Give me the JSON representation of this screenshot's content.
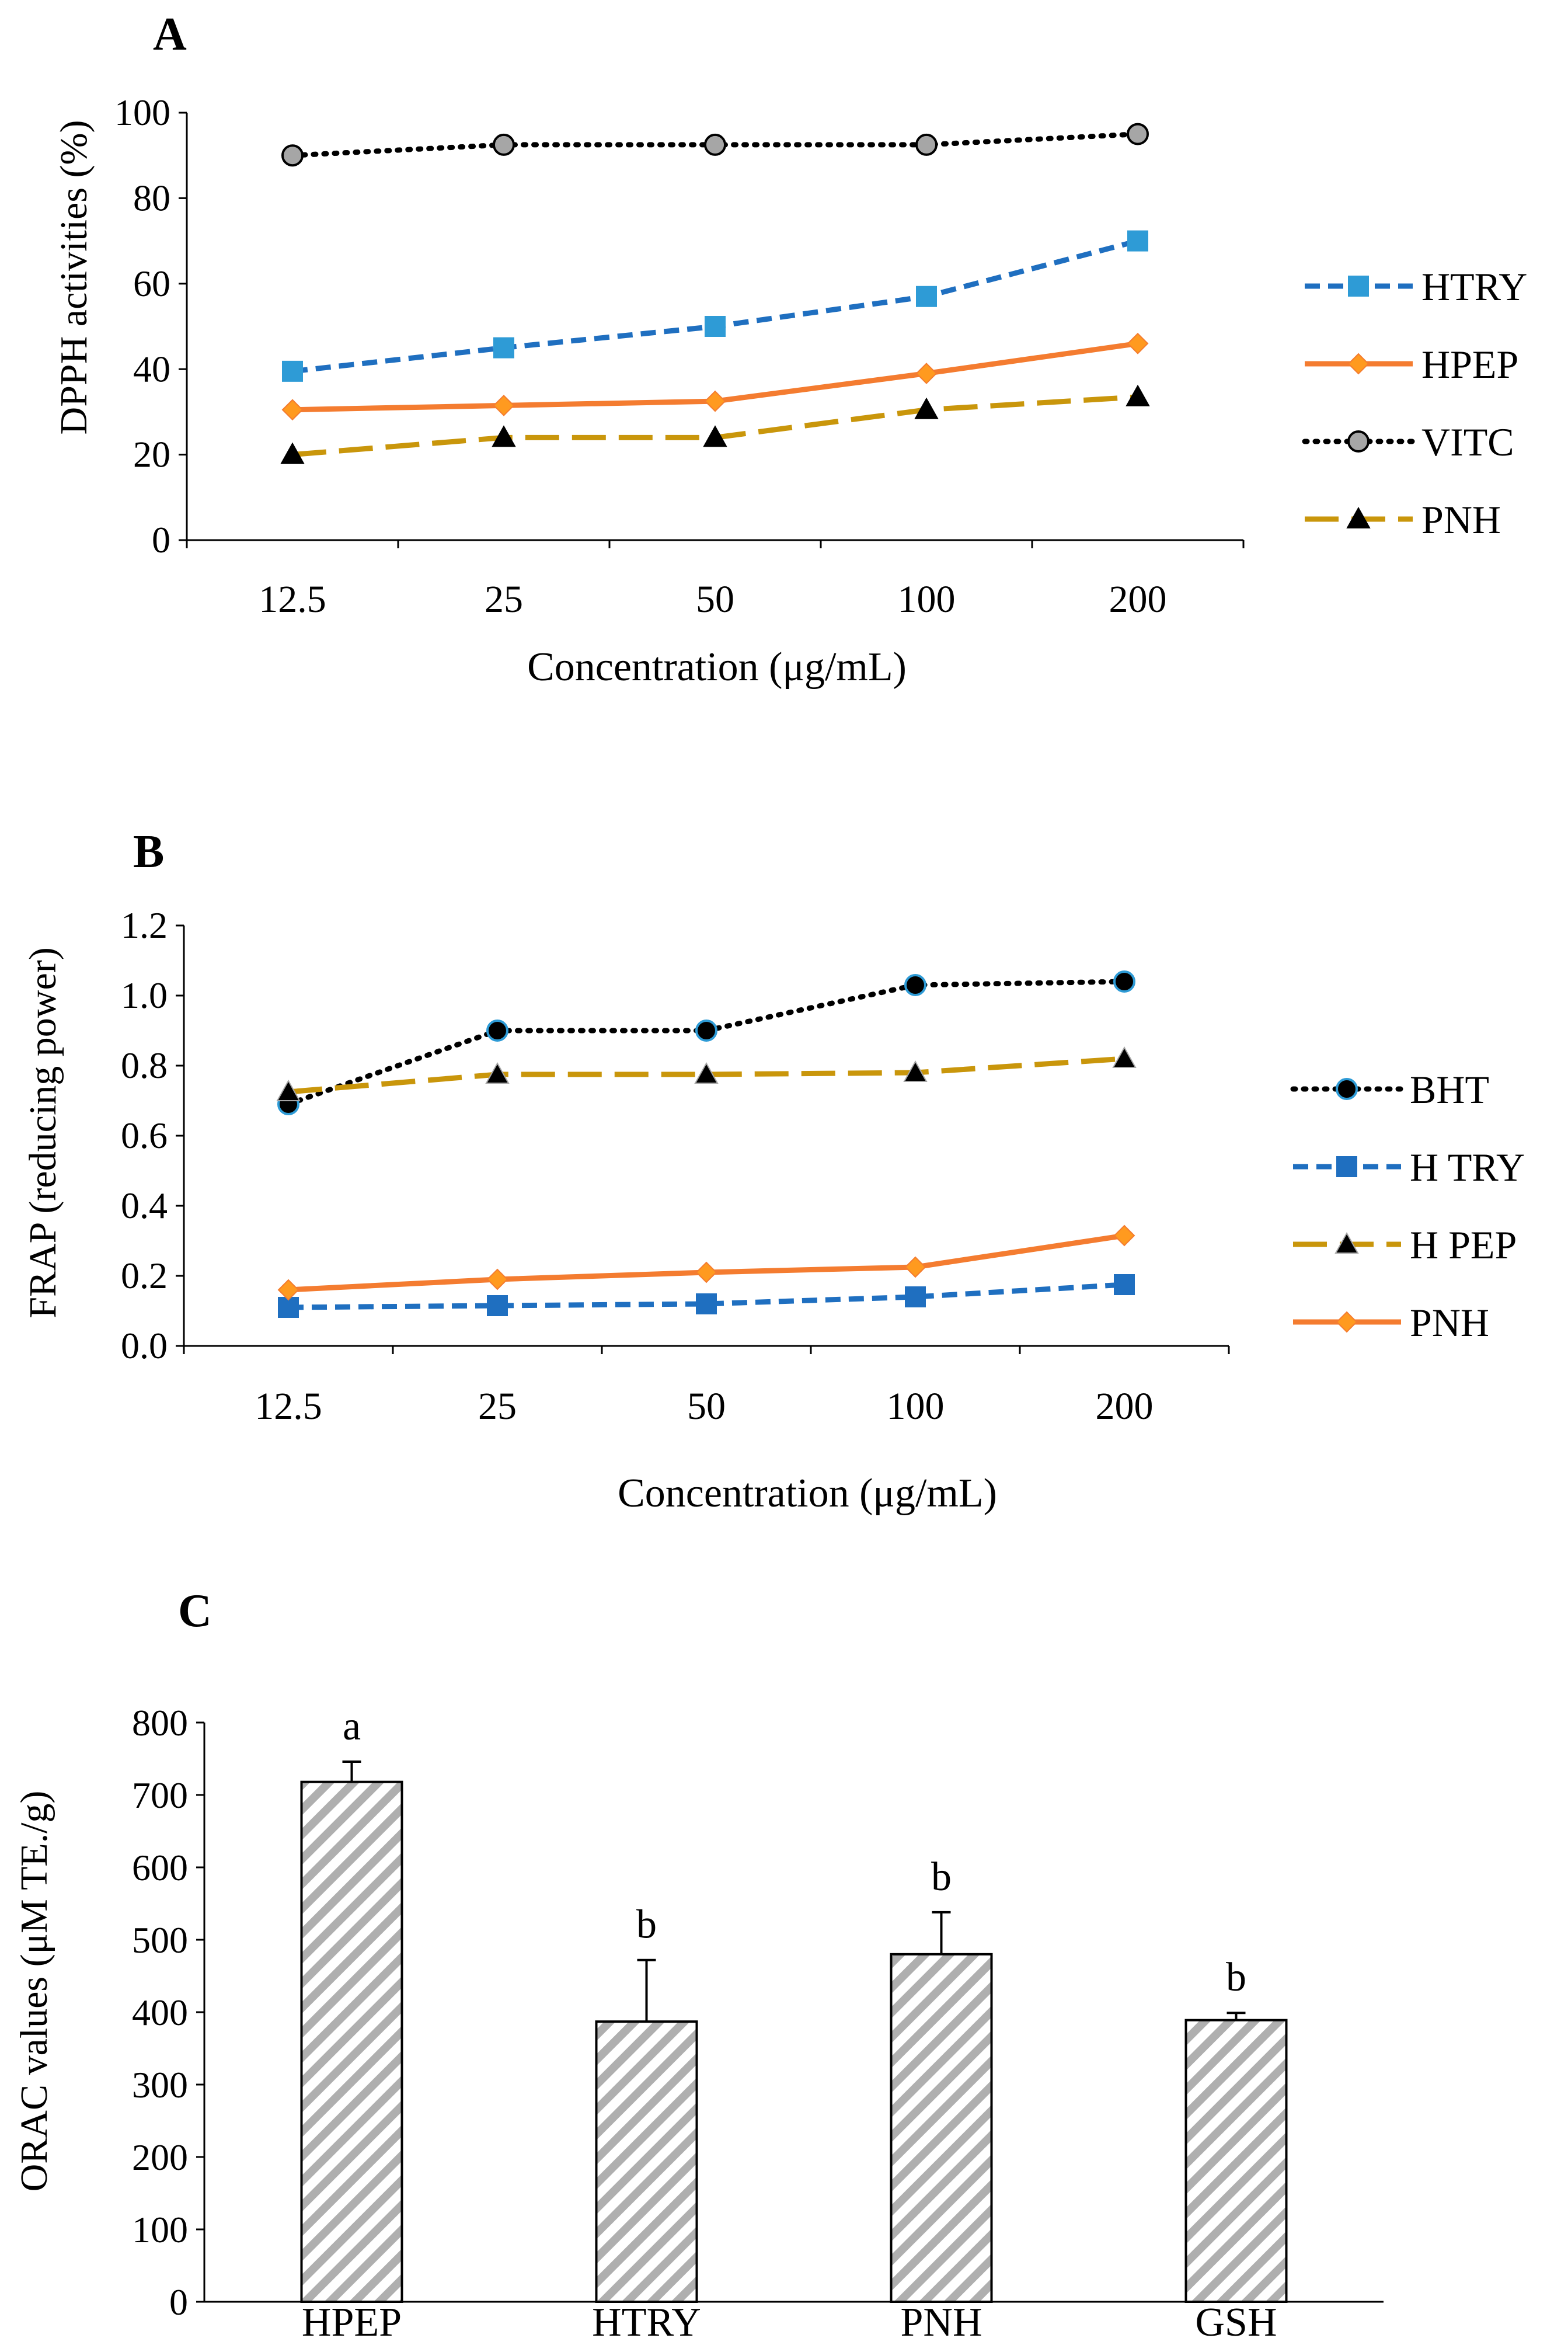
{
  "colors": {
    "blue_light": "#2E9BD6",
    "blue_dark": "#1F6FC0",
    "orange": "#F47C30",
    "orange_marker": "#FF9A1F",
    "gold": "#C9960B",
    "black": "#000000",
    "grey_marker": "#A6A6A6",
    "hatch": "#AFAFAF"
  },
  "chart_data": [
    {
      "type": "line",
      "panel_label": "A",
      "xlabel": "Concentration (μg/mL)",
      "ylabel": "DPPH activities (%)",
      "categories": [
        "12.5",
        "25",
        "50",
        "100",
        "200"
      ],
      "ylim": [
        0,
        100
      ],
      "yticks": [
        "0",
        "20",
        "40",
        "60",
        "80",
        "100"
      ],
      "grid": false,
      "legend_position": "right",
      "series": [
        {
          "name": "HTRY",
          "values": [
            39.5,
            45,
            50,
            57,
            70
          ],
          "style": "dashed",
          "color": "#1F6FC0",
          "marker": "square",
          "marker_color": "#2E9BD6"
        },
        {
          "name": "HPEP",
          "values": [
            30.5,
            31.5,
            32.5,
            39,
            46
          ],
          "style": "solid",
          "color": "#F47C30",
          "marker": "diamond",
          "marker_color": "#FF9A1F"
        },
        {
          "name": "VITC",
          "values": [
            90,
            92.5,
            92.5,
            92.5,
            95
          ],
          "style": "dotted",
          "color": "#000000",
          "marker": "circle",
          "marker_color": "#A6A6A6"
        },
        {
          "name": "PNH",
          "values": [
            20,
            24,
            24,
            30.5,
            33.5
          ],
          "style": "longdash",
          "color": "#C9960B",
          "marker": "triangle",
          "marker_color": "#000000"
        }
      ]
    },
    {
      "type": "line",
      "panel_label": "B",
      "xlabel": "Concentration (μg/mL)",
      "ylabel": "FRAP (reducing power)",
      "categories": [
        "12.5",
        "25",
        "50",
        "100",
        "200"
      ],
      "ylim": [
        0,
        1.2
      ],
      "yticks": [
        "0.0",
        "0.2",
        "0.4",
        "0.6",
        "0.8",
        "1.0",
        "1.2"
      ],
      "grid": false,
      "legend_position": "right",
      "series": [
        {
          "name": "BHT",
          "values": [
            0.69,
            0.9,
            0.9,
            1.03,
            1.04
          ],
          "style": "dotted",
          "color": "#000000",
          "marker": "circle",
          "marker_color": "#000000",
          "marker_edge": "#2E9BD6"
        },
        {
          "name": "H TRY",
          "values": [
            0.11,
            0.115,
            0.12,
            0.14,
            0.175
          ],
          "style": "dashed",
          "color": "#1F6FC0",
          "marker": "square",
          "marker_color": "#1F6FC0"
        },
        {
          "name": "H PEP",
          "values": [
            0.725,
            0.775,
            0.775,
            0.78,
            0.82
          ],
          "style": "longdash",
          "color": "#C9960B",
          "marker": "triangle",
          "marker_color": "#000000",
          "marker_edge": "#A6A6A6"
        },
        {
          "name": "PNH",
          "values": [
            0.16,
            0.19,
            0.21,
            0.225,
            0.315
          ],
          "style": "solid",
          "color": "#F47C30",
          "marker": "diamond",
          "marker_color": "#FF9A1F"
        }
      ]
    },
    {
      "type": "bar",
      "panel_label": "C",
      "xlabel": "",
      "ylabel": "ORAC values (μM TE./g)",
      "categories": [
        "HPEP",
        "HTRY",
        "PNH",
        "GSH"
      ],
      "values": [
        718,
        387,
        480,
        389
      ],
      "error_bars": [
        28,
        85,
        58,
        10
      ],
      "significance_letters": [
        "a",
        "b",
        "b",
        "b"
      ],
      "ylim": [
        0,
        800
      ],
      "yticks": [
        "0",
        "100",
        "200",
        "300",
        "400",
        "500",
        "600",
        "700",
        "800"
      ],
      "grid": false
    }
  ]
}
